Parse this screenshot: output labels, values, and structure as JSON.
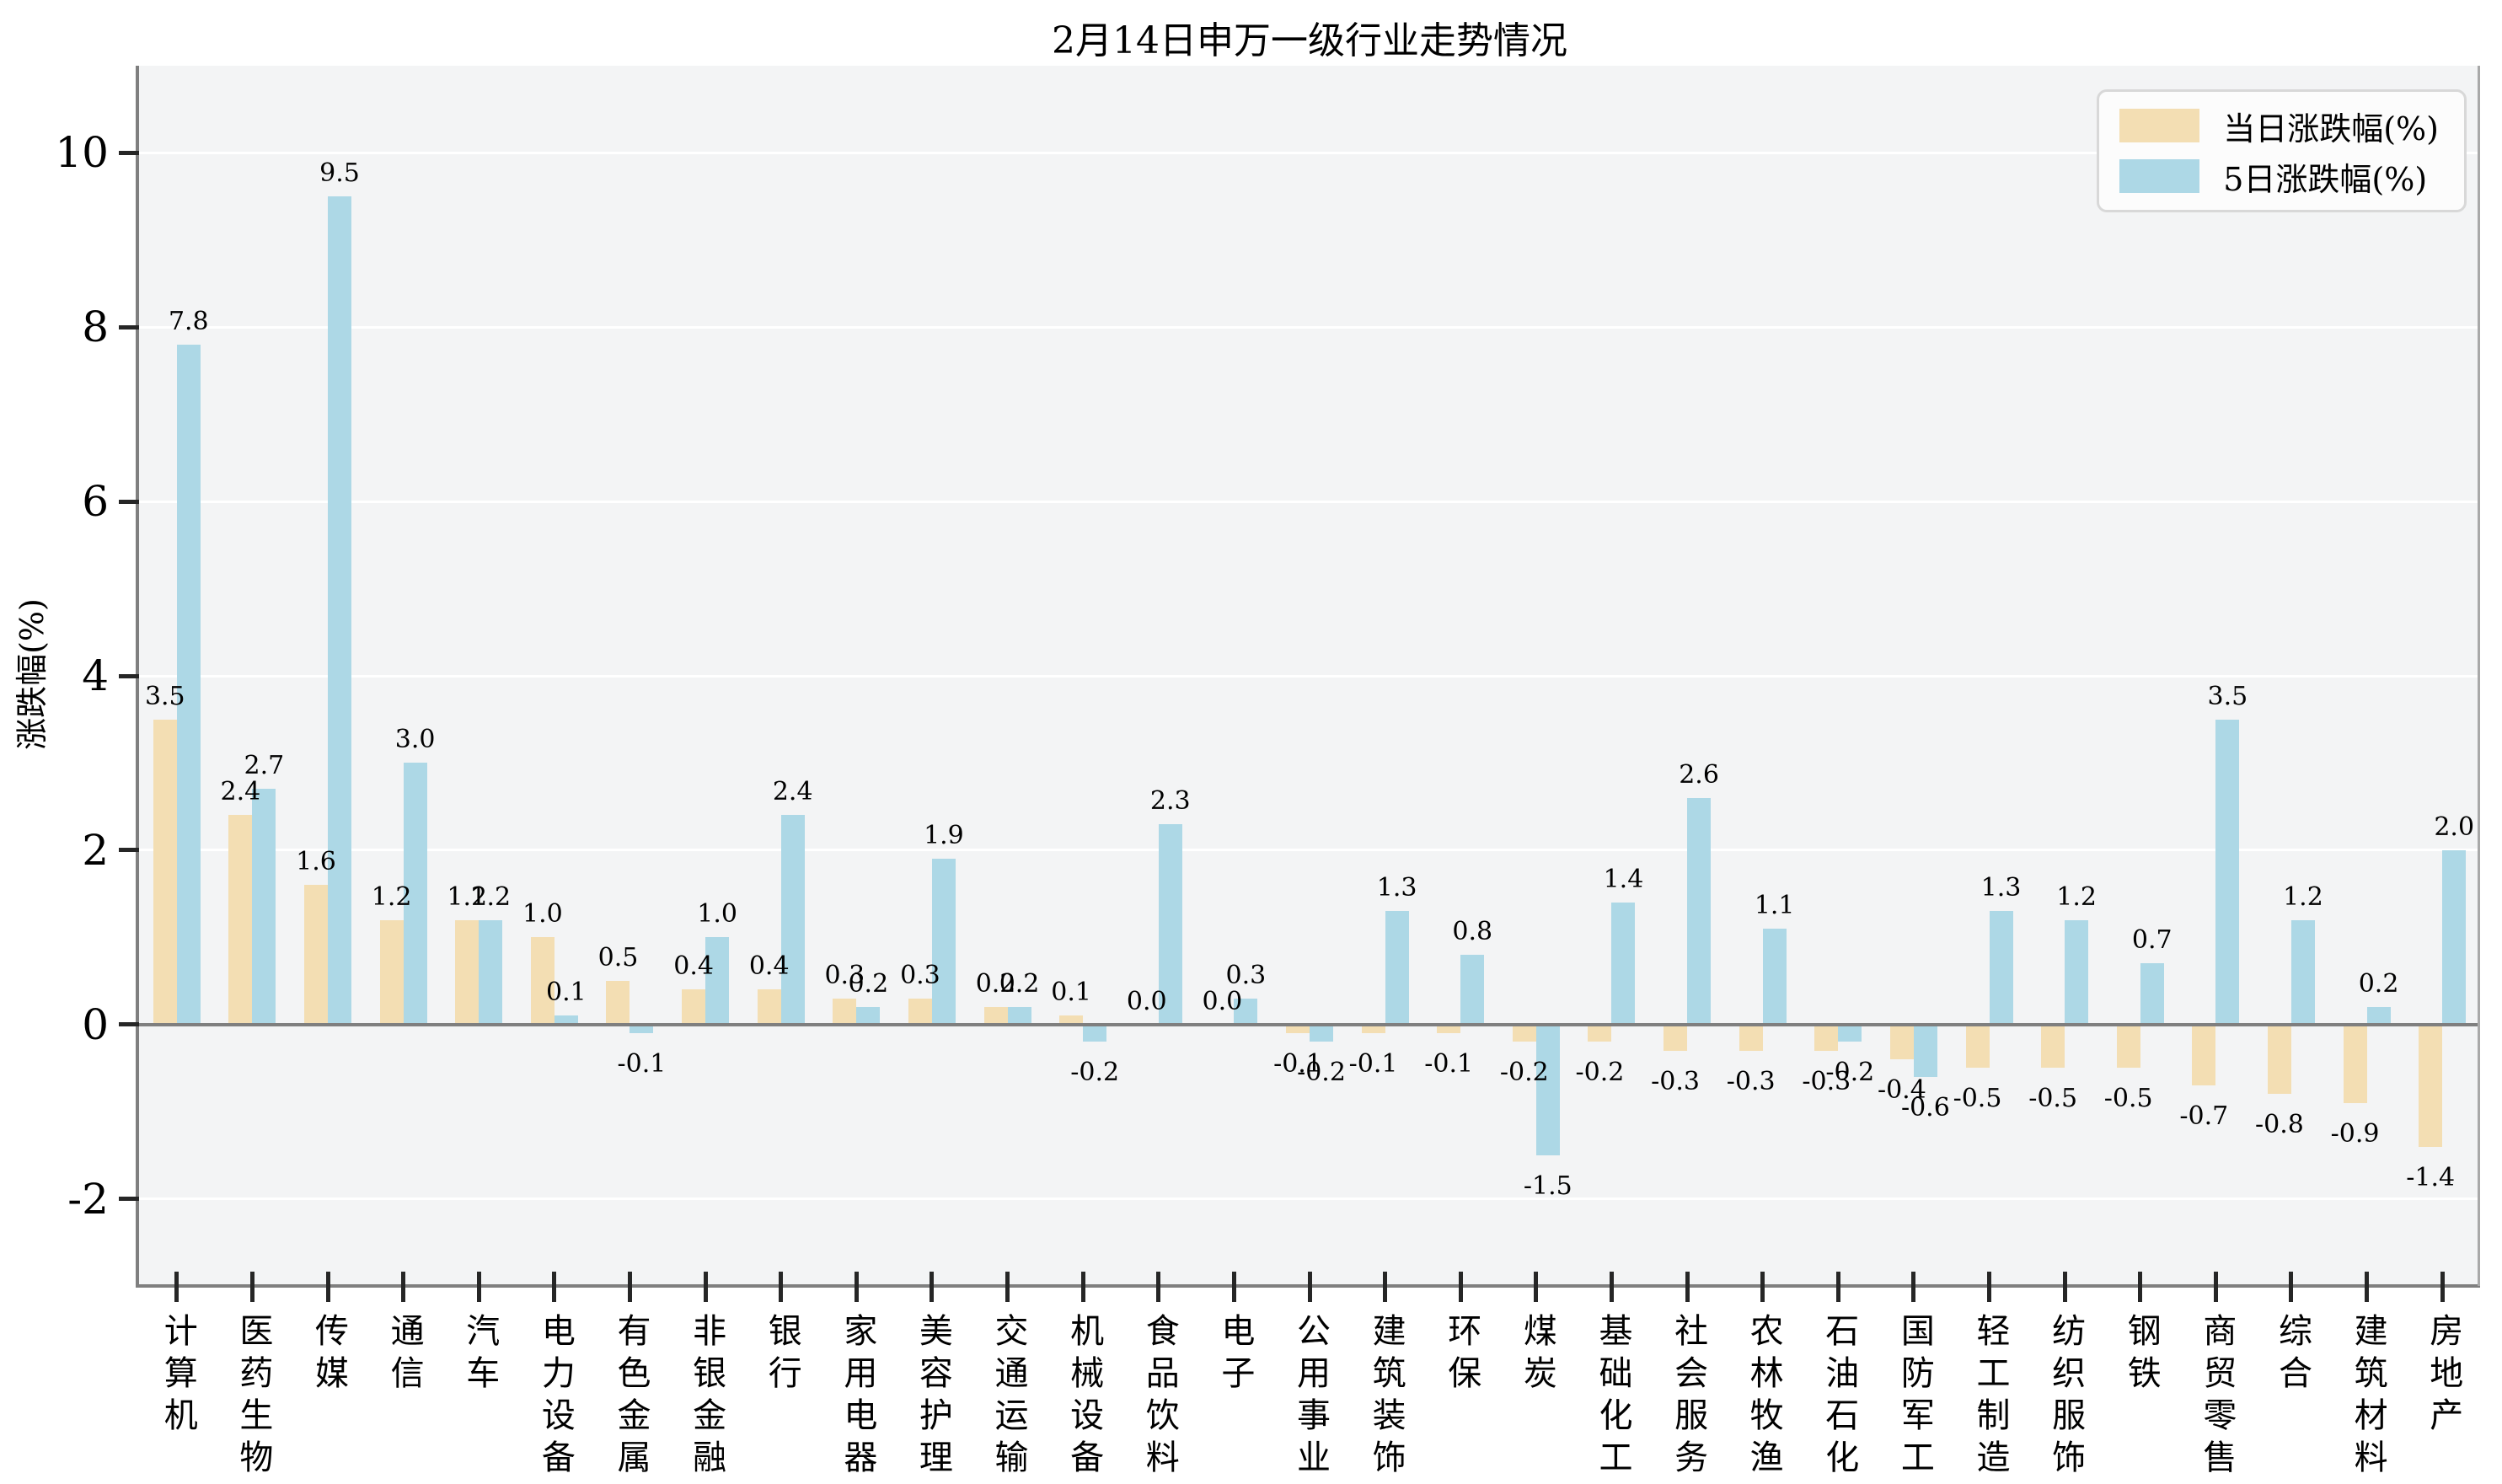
{
  "chart_data": {
    "type": "bar",
    "title": "2月14日申万一级行业走势情况",
    "xlabel": "",
    "ylabel": "涨跌幅(%)",
    "categories": [
      "计算机",
      "医药生物",
      "传媒",
      "通信",
      "汽车",
      "电力设备",
      "有色金属",
      "非银金融",
      "银行",
      "家用电器",
      "美容护理",
      "交通运输",
      "机械设备",
      "食品饮料",
      "电子",
      "公用事业",
      "建筑装饰",
      "环保",
      "煤炭",
      "基础化工",
      "社会服务",
      "农林牧渔",
      "石油石化",
      "国防军工",
      "轻工制造",
      "纺织服饰",
      "钢铁",
      "商贸零售",
      "综合",
      "建筑材料",
      "房地产"
    ],
    "series": [
      {
        "name": "当日涨跌幅(%)",
        "color": "#F3DEB3",
        "values": [
          3.5,
          2.4,
          1.6,
          1.2,
          1.2,
          1.0,
          0.5,
          0.4,
          0.4,
          0.3,
          0.3,
          0.2,
          0.1,
          0.0,
          0.0,
          -0.1,
          -0.1,
          -0.1,
          -0.2,
          -0.2,
          -0.3,
          -0.3,
          -0.3,
          -0.4,
          -0.5,
          -0.5,
          -0.5,
          -0.7,
          -0.8,
          -0.9,
          -1.4
        ]
      },
      {
        "name": "5日涨跌幅(%)",
        "color": "#ADD8E6",
        "values": [
          7.8,
          2.7,
          9.5,
          3.0,
          1.2,
          0.1,
          -0.1,
          1.0,
          2.4,
          0.2,
          1.9,
          0.2,
          -0.2,
          2.3,
          0.3,
          -0.2,
          1.3,
          0.8,
          -1.5,
          1.4,
          2.6,
          1.1,
          -0.2,
          -0.6,
          1.3,
          1.2,
          0.7,
          3.5,
          1.2,
          0.2,
          2.0
        ]
      }
    ],
    "yticks": [
      -2,
      0,
      2,
      4,
      6,
      8,
      10
    ],
    "ylim": [
      -3,
      11
    ],
    "grid": "horizontal white gridlines on light gray plot background",
    "legend_position": "upper right",
    "bar_value_labels": true,
    "value_label_format": "one decimal"
  },
  "colors": {
    "figure_bg": "#FFFFFF",
    "plot_bg": "#F3F4F5",
    "grid": "#FFFFFF",
    "axis": "#7F7F7F",
    "right_spine": "#A9A9A9",
    "tick": "#262626",
    "text": "#000000",
    "legend_bg": "#FCFCFC",
    "legend_border": "#D8D8D8"
  }
}
